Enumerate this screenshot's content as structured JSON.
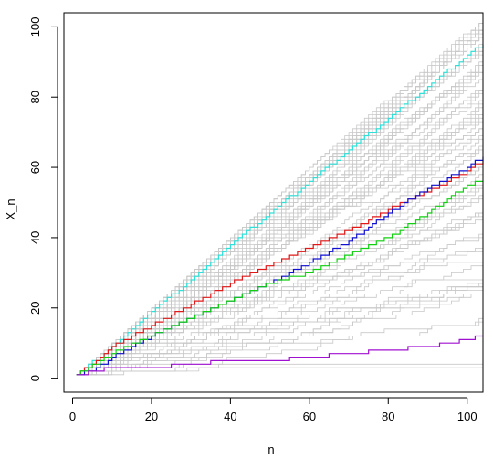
{
  "chart_data": {
    "type": "line",
    "title": "",
    "xlabel": "n",
    "ylabel": "X_n",
    "xlim": [
      -2.2,
      104
    ],
    "ylim": [
      -4,
      104
    ],
    "x_ticks": [
      0,
      20,
      40,
      60,
      80,
      100
    ],
    "y_ticks": [
      0,
      20,
      40,
      60,
      80,
      100
    ],
    "x_tick_labels": [
      "0",
      "20",
      "40",
      "60",
      "80",
      "100"
    ],
    "y_tick_labels": [
      "0",
      "20",
      "40",
      "60",
      "80",
      "100"
    ],
    "x_range": [
      1,
      104
    ],
    "grid": false,
    "legend": "none",
    "colors": {
      "background_series": "#c8c8c8",
      "cyan": "#2ee0d8",
      "red": "#e01818",
      "blue": "#1010d0",
      "green": "#10d010",
      "purple": "#a010d0"
    },
    "series": [
      {
        "color": "cyan",
        "points": [
          [
            1,
            1
          ],
          [
            10,
            9
          ],
          [
            20,
            19
          ],
          [
            30,
            28
          ],
          [
            40,
            38
          ],
          [
            50,
            47
          ],
          [
            60,
            56
          ],
          [
            70,
            65
          ],
          [
            80,
            74
          ],
          [
            90,
            83
          ],
          [
            100,
            92
          ],
          [
            104,
            95
          ]
        ]
      },
      {
        "color": "red",
        "points": [
          [
            1,
            1
          ],
          [
            5,
            4
          ],
          [
            10,
            9
          ],
          [
            20,
            15
          ],
          [
            30,
            21
          ],
          [
            40,
            27
          ],
          [
            50,
            32
          ],
          [
            60,
            37
          ],
          [
            70,
            42
          ],
          [
            80,
            48
          ],
          [
            90,
            53
          ],
          [
            100,
            59
          ],
          [
            104,
            62
          ]
        ]
      },
      {
        "color": "blue",
        "points": [
          [
            1,
            1
          ],
          [
            5,
            2
          ],
          [
            10,
            6
          ],
          [
            20,
            12
          ],
          [
            30,
            17
          ],
          [
            40,
            22
          ],
          [
            50,
            27
          ],
          [
            60,
            33
          ],
          [
            70,
            39
          ],
          [
            80,
            47
          ],
          [
            90,
            54
          ],
          [
            100,
            60
          ],
          [
            104,
            63
          ]
        ]
      },
      {
        "color": "green",
        "points": [
          [
            1,
            1
          ],
          [
            10,
            7
          ],
          [
            20,
            12
          ],
          [
            30,
            17
          ],
          [
            40,
            22
          ],
          [
            50,
            27
          ],
          [
            60,
            30
          ],
          [
            70,
            35
          ],
          [
            80,
            40
          ],
          [
            90,
            47
          ],
          [
            100,
            55
          ],
          [
            104,
            56
          ]
        ]
      },
      {
        "color": "purple",
        "points": [
          [
            1,
            1
          ],
          [
            6,
            2
          ],
          [
            10,
            3
          ],
          [
            20,
            3
          ],
          [
            30,
            4
          ],
          [
            40,
            5
          ],
          [
            50,
            5
          ],
          [
            60,
            6
          ],
          [
            70,
            7
          ],
          [
            80,
            8
          ],
          [
            90,
            9
          ],
          [
            100,
            11
          ],
          [
            104,
            12
          ]
        ]
      }
    ]
  }
}
